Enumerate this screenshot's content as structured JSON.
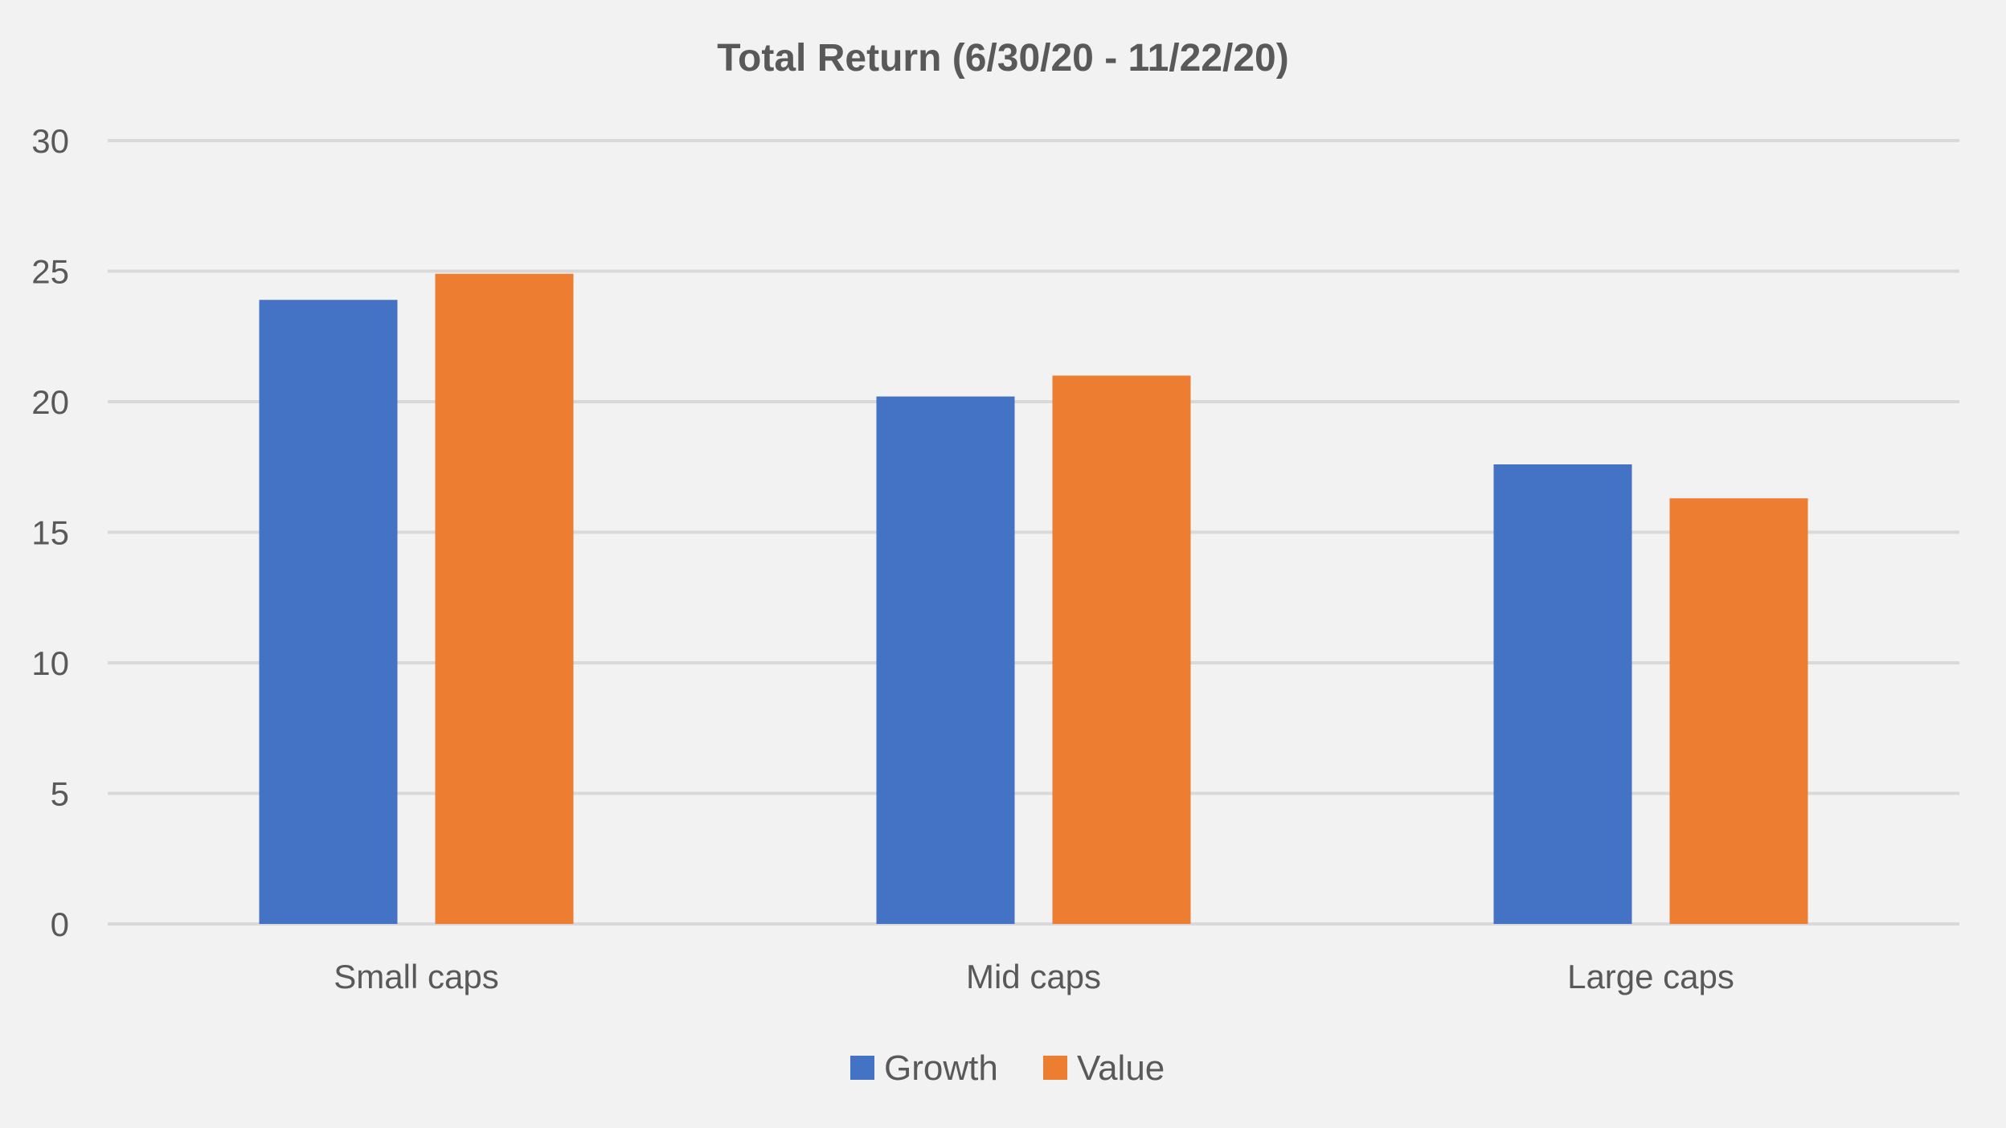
{
  "chart_data": {
    "type": "bar",
    "title": "Total Return (6/30/20 - 11/22/20)",
    "xlabel": "",
    "ylabel": "",
    "categories": [
      "Small caps",
      "Mid caps",
      "Large caps"
    ],
    "series": [
      {
        "name": "Growth",
        "color": "#4472c4",
        "values": [
          23.9,
          20.2,
          17.6
        ]
      },
      {
        "name": "Value",
        "color": "#ed7d31",
        "values": [
          24.9,
          21.0,
          16.3
        ]
      }
    ],
    "ylim": [
      0,
      30
    ],
    "yticks": [
      "0",
      "5",
      "10",
      "15",
      "20",
      "25",
      "30"
    ],
    "grid": true,
    "legend_position": "bottom"
  }
}
